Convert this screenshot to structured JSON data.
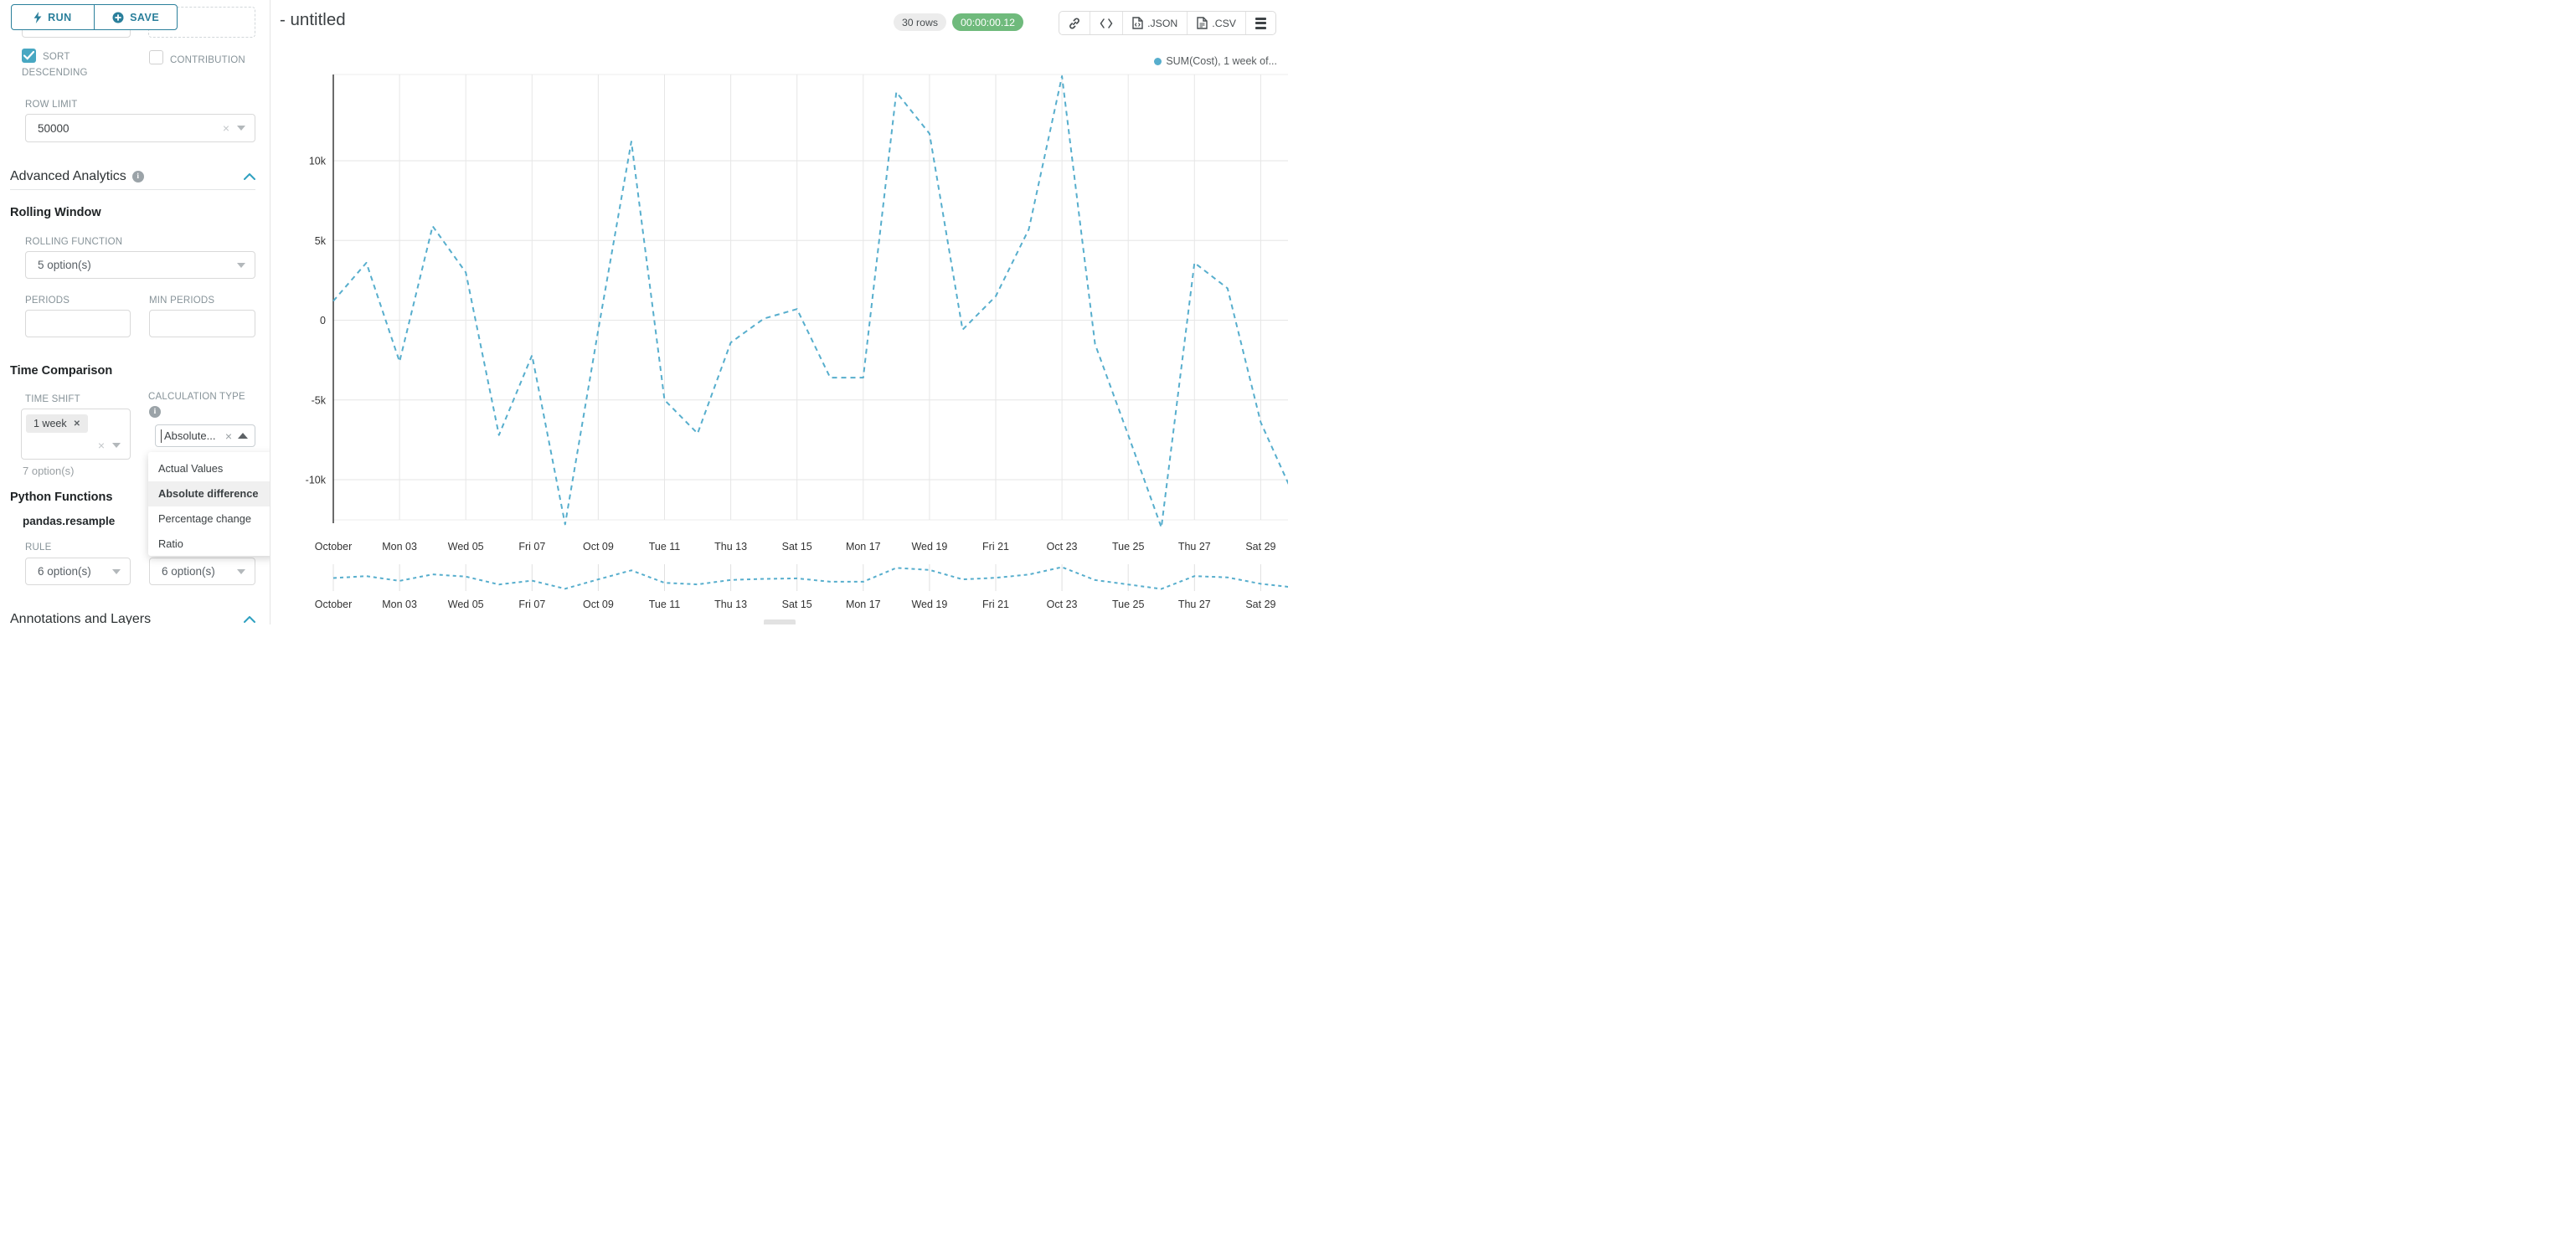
{
  "sidebar": {
    "run_button": "RUN",
    "save_button": "SAVE",
    "partial_left_select_text": "7 option(s)",
    "sort_descending": {
      "label_line1": "SORT",
      "label_line2": "DESCENDING",
      "checked": true
    },
    "contribution": {
      "label": "CONTRIBUTION",
      "checked": false
    },
    "row_limit": {
      "label": "ROW LIMIT",
      "value": "50000"
    },
    "advanced_analytics_title": "Advanced Analytics",
    "rolling_window": {
      "title": "Rolling Window",
      "rolling_function": {
        "label": "ROLLING FUNCTION",
        "value": "5 option(s)"
      },
      "periods": {
        "label": "PERIODS",
        "value": ""
      },
      "min_periods": {
        "label": "MIN PERIODS",
        "value": ""
      }
    },
    "time_comparison": {
      "title": "Time Comparison",
      "time_shift": {
        "label": "TIME SHIFT",
        "tag": "1 week",
        "hint": "7 option(s)"
      },
      "calculation_type": {
        "label": "CALCULATION TYPE",
        "value": "Absolute...",
        "options": [
          "Actual Values",
          "Absolute difference",
          "Percentage change",
          "Ratio"
        ],
        "selected_option": "Absolute difference"
      }
    },
    "python_functions": {
      "title": "Python Functions",
      "function_name": "pandas.resample",
      "rule": {
        "label": "RULE",
        "value": "6 option(s)"
      },
      "second_select_value": "6 option(s)"
    },
    "annotations_title": "Annotations and Layers"
  },
  "header": {
    "title": "- untitled",
    "rows_badge": "30 rows",
    "timer_badge": "00:00:00.12",
    "export_json_label": ".JSON",
    "export_csv_label": ".CSV"
  },
  "chart_data": {
    "type": "line",
    "title": "",
    "legend": [
      {
        "name": "SUM(Cost), 1 week of...",
        "color": "#57aecd"
      }
    ],
    "legend_position": "top-right",
    "grid": true,
    "line_style": "dashed",
    "x_tick_labels": [
      "October",
      "Mon 03",
      "Wed 05",
      "Fri 07",
      "Oct 09",
      "Tue 11",
      "Thu 13",
      "Sat 15",
      "Mon 17",
      "Wed 19",
      "Fri 21",
      "Oct 23",
      "Tue 25",
      "Thu 27",
      "Sat 29"
    ],
    "y_tick_labels": [
      "10k",
      "5k",
      "0",
      "-5k",
      "-10k"
    ],
    "y_ticks": [
      10000,
      5000,
      0,
      -5000,
      -10000
    ],
    "ylim": [
      -12600,
      15400
    ],
    "series": [
      {
        "name": "SUM(Cost), 1 week of...",
        "color": "#57aecd",
        "dates": [
          "2022-10-01",
          "2022-10-02",
          "2022-10-03",
          "2022-10-04",
          "2022-10-05",
          "2022-10-06",
          "2022-10-07",
          "2022-10-08",
          "2022-10-09",
          "2022-10-10",
          "2022-10-11",
          "2022-10-12",
          "2022-10-13",
          "2022-10-14",
          "2022-10-15",
          "2022-10-16",
          "2022-10-17",
          "2022-10-18",
          "2022-10-19",
          "2022-10-20",
          "2022-10-21",
          "2022-10-22",
          "2022-10-23",
          "2022-10-24",
          "2022-10-25",
          "2022-10-26",
          "2022-10-27",
          "2022-10-28",
          "2022-10-29",
          "2022-10-30"
        ],
        "values": [
          1200,
          3600,
          -2600,
          5900,
          3000,
          -7200,
          -2200,
          -12800,
          -600,
          11200,
          -5000,
          -7100,
          -1400,
          100,
          700,
          -3600,
          -3600,
          14300,
          11700,
          -600,
          1500,
          5700,
          15300,
          -1500,
          -7200,
          -13000,
          3600,
          2000,
          -6400,
          -11000
        ]
      }
    ],
    "has_mini_preview": true
  },
  "colors": {
    "accent_teal": "#2a7f9b",
    "checkbox_teal": "#48a7c2",
    "series_blue": "#57aecd",
    "timer_green": "#6fba7c",
    "label_gray": "#879399"
  }
}
